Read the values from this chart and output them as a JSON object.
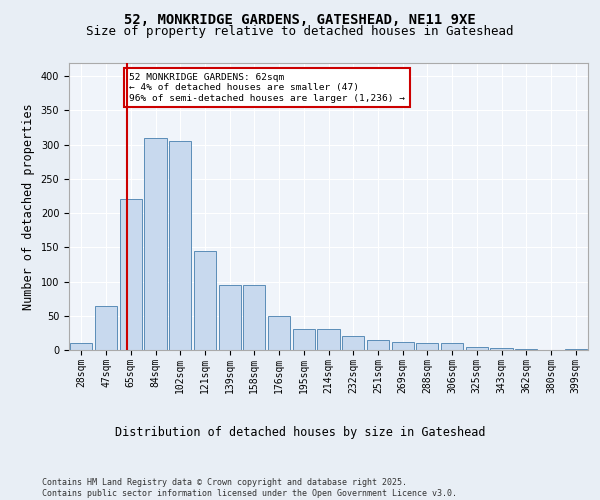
{
  "title1": "52, MONKRIDGE GARDENS, GATESHEAD, NE11 9XE",
  "title2": "Size of property relative to detached houses in Gateshead",
  "xlabel": "Distribution of detached houses by size in Gateshead",
  "ylabel": "Number of detached properties",
  "categories": [
    "28sqm",
    "47sqm",
    "65sqm",
    "84sqm",
    "102sqm",
    "121sqm",
    "139sqm",
    "158sqm",
    "176sqm",
    "195sqm",
    "214sqm",
    "232sqm",
    "251sqm",
    "269sqm",
    "288sqm",
    "306sqm",
    "325sqm",
    "343sqm",
    "362sqm",
    "380sqm",
    "399sqm"
  ],
  "values": [
    10,
    65,
    220,
    310,
    305,
    145,
    95,
    95,
    50,
    30,
    30,
    20,
    15,
    12,
    10,
    10,
    5,
    3,
    2,
    0,
    2
  ],
  "bar_color": "#c8d9ee",
  "bar_edge_color": "#5b8db8",
  "red_line_x": 1.85,
  "annotation_text": "52 MONKRIDGE GARDENS: 62sqm\n← 4% of detached houses are smaller (47)\n96% of semi-detached houses are larger (1,236) →",
  "annotation_box_color": "#ffffff",
  "annotation_box_edge_color": "#cc0000",
  "footer": "Contains HM Land Registry data © Crown copyright and database right 2025.\nContains public sector information licensed under the Open Government Licence v3.0.",
  "ylim": [
    0,
    420
  ],
  "yticks": [
    0,
    50,
    100,
    150,
    200,
    250,
    300,
    350,
    400
  ],
  "bg_color": "#e8eef5",
  "plot_bg_color": "#f0f4fa",
  "grid_color": "#ffffff",
  "title1_fontsize": 10,
  "title2_fontsize": 9,
  "tick_fontsize": 7,
  "label_fontsize": 8.5,
  "footer_fontsize": 6.0
}
